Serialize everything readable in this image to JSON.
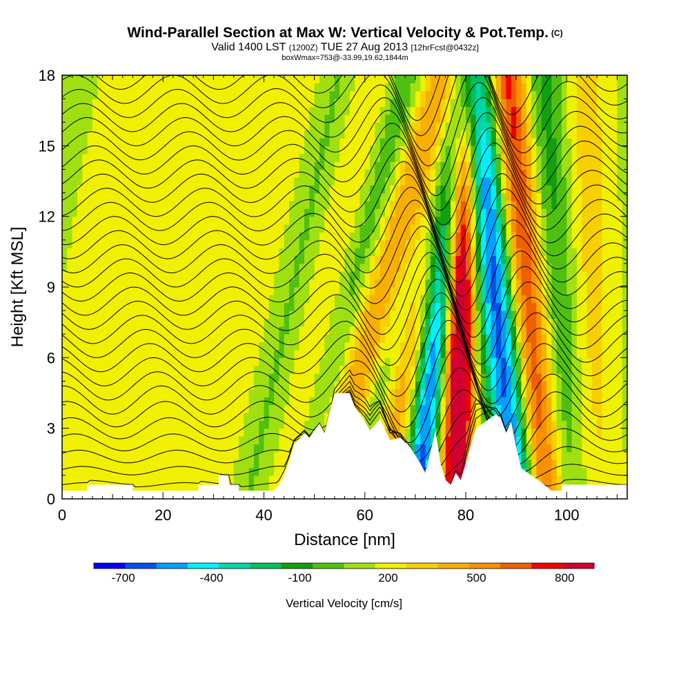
{
  "title": {
    "main": "Wind-Parallel Section at Max W: Vertical Velocity & Pot.Temp.",
    "copyright": "(C)",
    "valid_pre": "Valid 1400 LST",
    "valid_z": "(1200Z)",
    "valid_date": "TUE 27 Aug 2013",
    "fcst": "[12hrFcst@0432z]",
    "box": "boxWmax=753@-33.99,19.62,1844m"
  },
  "chart_data": {
    "type": "heatmap",
    "xlabel": "Distance [nm]",
    "ylabel": "Height [Kft MSL]",
    "xlim": [
      0,
      112
    ],
    "ylim": [
      0,
      18
    ],
    "xticks": [
      0,
      20,
      40,
      60,
      80,
      100
    ],
    "yticks": [
      0,
      3,
      6,
      9,
      12,
      15,
      18
    ],
    "colorbar": {
      "title": "Vertical Velocity [cm/s]",
      "min": -800,
      "max": 900,
      "step": 100,
      "labels": [
        -700,
        -400,
        -100,
        200,
        500,
        800
      ],
      "colors": [
        "#0000ff",
        "#0050f0",
        "#00a0ff",
        "#00f0ff",
        "#00d8a8",
        "#00c060",
        "#10a010",
        "#50c010",
        "#a0e010",
        "#f0f000",
        "#f8d000",
        "#f8b000",
        "#f89000",
        "#f06000",
        "#f00000",
        "#d00030"
      ]
    },
    "velocity_features": [
      {
        "kind": "updraft",
        "x": 10,
        "width": 10,
        "strength": 80,
        "tilt": 0.8
      },
      {
        "kind": "updraft",
        "x": 28,
        "width": 6,
        "strength": 60,
        "tilt": 0.6
      },
      {
        "kind": "updraft",
        "x": 40,
        "width": 6,
        "strength": 120,
        "tilt": 1.0
      },
      {
        "kind": "downdraft",
        "x": 46,
        "width": 5,
        "strength": 180,
        "tilt": 1.0
      },
      {
        "kind": "updraft",
        "x": 52,
        "width": 6,
        "strength": 170,
        "tilt": 1.0
      },
      {
        "kind": "downdraft",
        "x": 58,
        "width": 4,
        "strength": 220,
        "tilt": 1.2
      },
      {
        "kind": "updraft",
        "x": 64,
        "width": 5,
        "strength": 380,
        "tilt": 1.3
      },
      {
        "kind": "downdraft",
        "x": 69,
        "width": 4,
        "strength": 380,
        "tilt": 1.2
      },
      {
        "kind": "updraft",
        "x": 71,
        "width": 4,
        "strength": 450,
        "tilt": 1.0
      },
      {
        "kind": "downdraft",
        "x": 75,
        "width": 3,
        "strength": 700,
        "tilt": 0.5
      },
      {
        "kind": "updraft",
        "x": 79,
        "width": 3,
        "strength": 870,
        "tilt": 0.1
      },
      {
        "kind": "downdraft",
        "x": 86,
        "width": 4,
        "strength": 750,
        "tilt": -0.5
      },
      {
        "kind": "updraft",
        "x": 92,
        "width": 4,
        "strength": 620,
        "tilt": -0.4
      },
      {
        "kind": "downdraft",
        "x": 98,
        "width": 5,
        "strength": 250,
        "tilt": -0.3
      },
      {
        "kind": "updraft",
        "x": 104,
        "width": 5,
        "strength": 200,
        "tilt": -0.1
      }
    ],
    "terrain_profile": [
      [
        0,
        0.35
      ],
      [
        5,
        0.35
      ],
      [
        5,
        0.6
      ],
      [
        14,
        0.6
      ],
      [
        14,
        0.35
      ],
      [
        27,
        0.35
      ],
      [
        27,
        0.6
      ],
      [
        31,
        0.6
      ],
      [
        31,
        1.0
      ],
      [
        33,
        1.0
      ],
      [
        33,
        0.6
      ],
      [
        35,
        0.6
      ],
      [
        35,
        0.35
      ],
      [
        42,
        0.35
      ],
      [
        43,
        0.6
      ],
      [
        44,
        1.0
      ],
      [
        45,
        1.6
      ],
      [
        46,
        2.3
      ],
      [
        48,
        2.8
      ],
      [
        49,
        2.6
      ],
      [
        51,
        3.2
      ],
      [
        52,
        2.8
      ],
      [
        53,
        3.7
      ],
      [
        54,
        4.5
      ],
      [
        57,
        4.5
      ],
      [
        58,
        3.9
      ],
      [
        60,
        3.3
      ],
      [
        61,
        2.9
      ],
      [
        63,
        3.4
      ],
      [
        65,
        2.5
      ],
      [
        67,
        2.6
      ],
      [
        69,
        2.2
      ],
      [
        71,
        1.5
      ],
      [
        72,
        1.1
      ],
      [
        74,
        2.9
      ],
      [
        75,
        1.5
      ],
      [
        76,
        0.8
      ],
      [
        77,
        0.6
      ],
      [
        78,
        1.1
      ],
      [
        79,
        0.8
      ],
      [
        80,
        1.5
      ],
      [
        81,
        2.3
      ],
      [
        82,
        3.0
      ],
      [
        84,
        3.3
      ],
      [
        86,
        3.6
      ],
      [
        87,
        3.4
      ],
      [
        88,
        2.8
      ],
      [
        89,
        3.3
      ],
      [
        90,
        2.2
      ],
      [
        91,
        1.3
      ],
      [
        93,
        1.0
      ],
      [
        95,
        0.7
      ],
      [
        97,
        0.35
      ],
      [
        99,
        0.35
      ],
      [
        99,
        0.6
      ],
      [
        112,
        0.6
      ]
    ],
    "theta_contours": {
      "count": 30,
      "base_height_kft": 0.6,
      "spacing_kft": 0.6
    }
  }
}
